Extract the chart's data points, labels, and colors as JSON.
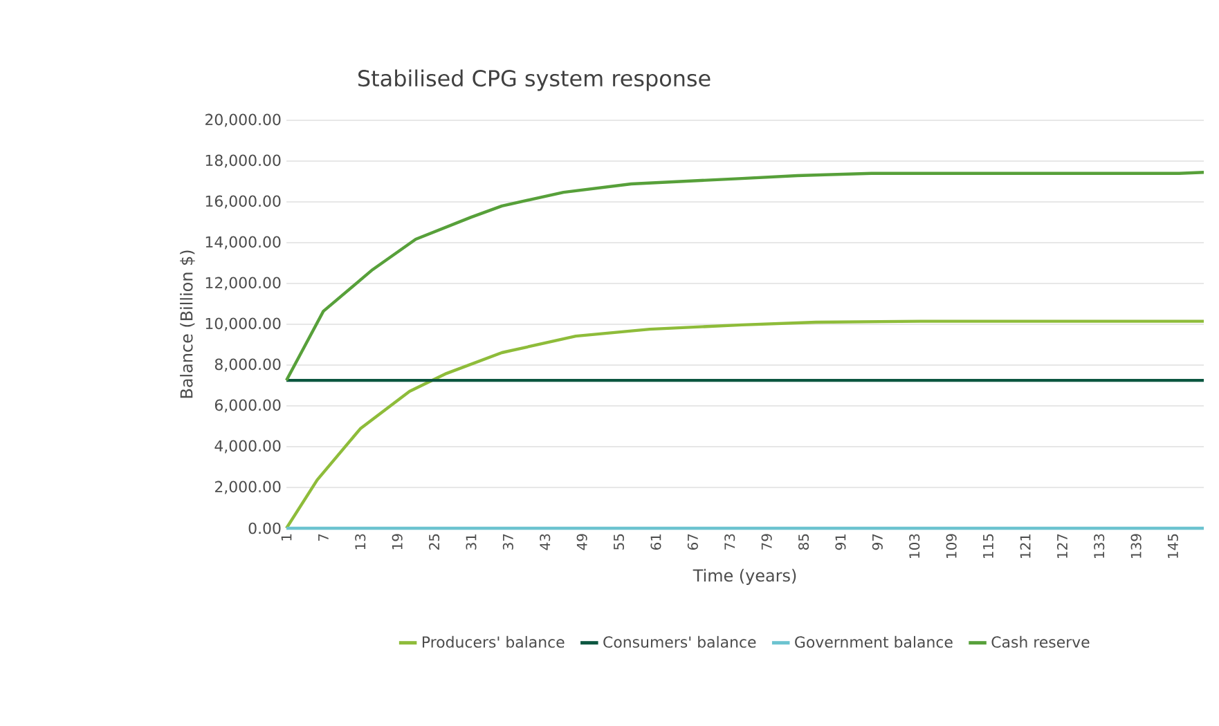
{
  "chart_data": {
    "type": "line",
    "title": "Stabilised CPG system response",
    "xlabel": "Time (years)",
    "ylabel": "Balance (Billion $)",
    "xlim": [
      1,
      150
    ],
    "xticks": [
      1,
      7,
      13,
      19,
      25,
      31,
      37,
      43,
      49,
      55,
      61,
      67,
      73,
      79,
      85,
      91,
      97,
      103,
      109,
      115,
      121,
      127,
      133,
      139,
      145
    ],
    "ylim": [
      0,
      20000
    ],
    "yticks": [
      {
        "value": 0,
        "label": "0.00"
      },
      {
        "value": 2000,
        "label": "2,000.00"
      },
      {
        "value": 4000,
        "label": "4,000.00"
      },
      {
        "value": 6000,
        "label": "6,000.00"
      },
      {
        "value": 8000,
        "label": "8,000.00"
      },
      {
        "value": 10000,
        "label": "10,000.00"
      },
      {
        "value": 12000,
        "label": "12,000.00"
      },
      {
        "value": 14000,
        "label": "14,000.00"
      },
      {
        "value": 16000,
        "label": "16,000.00"
      },
      {
        "value": 18000,
        "label": "18,000.00"
      },
      {
        "value": 20000,
        "label": "20,000.00"
      }
    ],
    "grid": "y",
    "legend": "bottom",
    "series": [
      {
        "name": "Producers' balance",
        "color": "#8ebc3a",
        "x": [
          1,
          6,
          13,
          21,
          27,
          36,
          48,
          60,
          75,
          87,
          104,
          150
        ],
        "values": [
          0,
          2370,
          4880,
          6710,
          7590,
          8610,
          9420,
          9760,
          9970,
          10100,
          10150,
          10150
        ]
      },
      {
        "name": "Consumers' balance",
        "color": "#0b5640",
        "x": [
          1,
          150
        ],
        "values": [
          7250,
          7250
        ]
      },
      {
        "name": "Government balance",
        "color": "#6cc3d0",
        "x": [
          1,
          150
        ],
        "values": [
          0,
          0
        ]
      },
      {
        "name": "Cash reserve",
        "color": "#57a03a",
        "x": [
          1,
          7,
          15,
          22,
          31,
          36,
          46,
          57,
          75,
          84,
          96,
          146,
          150
        ],
        "values": [
          7250,
          10640,
          12680,
          14170,
          15250,
          15800,
          16470,
          16880,
          17150,
          17290,
          17400,
          17400,
          17450
        ]
      }
    ]
  }
}
